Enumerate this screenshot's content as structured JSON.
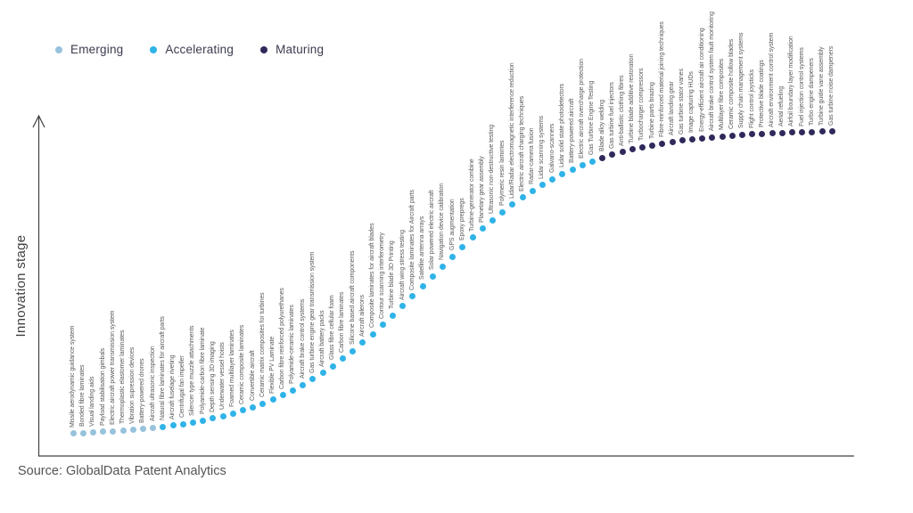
{
  "source": "Source: GlobalData Patent Analytics",
  "chart_data": {
    "type": "scatter",
    "title": "",
    "xlabel": "",
    "ylabel": "Innovation stage",
    "legend_position": "top-left",
    "grid": false,
    "x_axis": {
      "ticks": [],
      "arrow": false
    },
    "y_axis": {
      "ticks": [],
      "arrow": true
    },
    "curve_shape": "s-curve (sigmoid rising left-to-right, one dot per technology, ordered by innovation stage)",
    "legend": [
      "Emerging",
      "Accelerating",
      "Maturing"
    ],
    "series": [
      {
        "name": "Emerging",
        "color": "#97c2dc",
        "items": [
          "Missile aerodynamic guidance system",
          "Bonded fibre laminates",
          "Visual landing aids",
          "Payload stabilisation gimbals",
          "Electric aircraft power transmission system",
          "Thermoplastic elastomer laminates",
          "Vibration supression devices",
          "Battery-powered drones",
          "Aircraft ultrasonic inspection"
        ]
      },
      {
        "name": "Accelerating",
        "color": "#2fb3e8",
        "items": [
          "Natural fibre laminates for aircraft parts",
          "Aircraft fuselage riveting",
          "Centrifugal fan impeller",
          "Silencer type muzzle attachments",
          "Polyamide-carbon fibre laminate",
          "Depth sensing 3D imaging",
          "Underwater vessel hoists",
          "Foamed multilayer laminates",
          "Ceramic composite laminates",
          "Convertible aircraft",
          "Ceramic matrix composites for turbines",
          "Flexible PV Laminate",
          "Carbon fibre reinforced polyurethanes",
          "Polyamide-ceramic laminates",
          "Aircraft brake control systems",
          "Gas turbine engine gear transmission system",
          "Aircraft battery packs",
          "Glass fibre cellular foam",
          "Carbon fibre laminates",
          "Silicone based aircraft components",
          "Aircraft ailerons",
          "Composite laminates for aircraft blades",
          "Contour scanning interferometry",
          "Turbine blade 3D Printing",
          "Aircraft wing stress testing",
          "Composite laminates for Aircraft parts",
          "Satellite antenna arrays",
          "Solar powered electric aircraft",
          "Navigation device calibration",
          "GPS augmentation",
          "Epoxy prepregs",
          "Turbine-generator combine",
          "Planetary gear assembly",
          "Ultrasonic non-destructive testing",
          "Polymeric resin lamintes",
          "Lidar/Radar electromagnetic interference reduction",
          "Electric aircraft charging techniques",
          "Radar-camera fusion",
          "Lidar scanning systems",
          "Galvano-scanners",
          "Lidar solid state photodetectors",
          "Battery-powered aircraft",
          "Electric aircraft overcharge protection",
          "Gas Turbine Engine Testing"
        ]
      },
      {
        "name": "Maturing",
        "color": "#2f2a5b",
        "items": [
          "Blade alloy welding",
          "Gas turbine fuel injectors",
          "Anti-ballistic clothing fibres",
          "Turbine blade additive restoration",
          "Turbocharger compressors",
          "Turbine parts brazing",
          "Fibre-reinforced material joining techniques",
          "Aircraft landing gear",
          "Gas turbine stator vanes",
          "Image capturing HUDs",
          "Energy-efficient aircraft air conditioning",
          "Aircraft brake control system fault monitoring",
          "Multilayer fibre composites",
          "Ceramic composite hollow blades",
          "Supply chain management systems",
          "Flight control joysticks",
          "Protective blade coatings",
          "Aircraft environment control system",
          "Aerial refueling",
          "Airfoil boundary layer modification",
          "Fuel injection control systems",
          "Turbo engine dampeners",
          "Turbine guide vane assembly",
          "Gas turbine noise dampeners"
        ]
      }
    ]
  }
}
